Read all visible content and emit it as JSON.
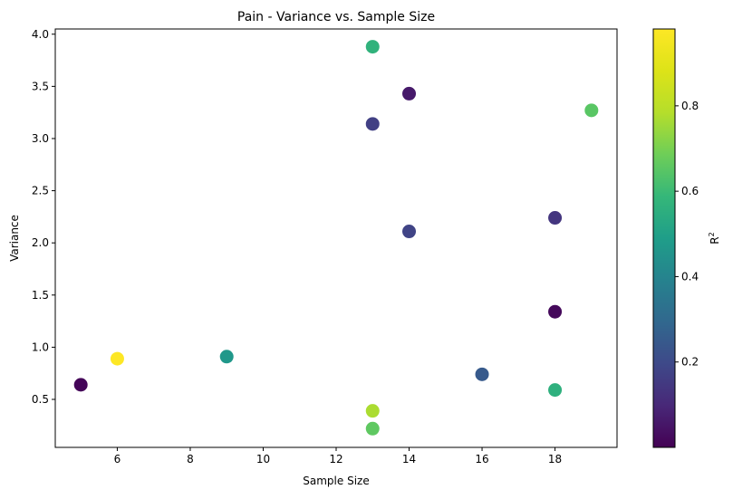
{
  "chart_data": {
    "type": "scatter",
    "title": "Pain - Variance vs. Sample Size",
    "xlabel": "Sample Size",
    "ylabel": "Variance",
    "xlim": [
      4.3,
      19.7
    ],
    "ylim": [
      0.04,
      4.05
    ],
    "xticks": [
      6,
      8,
      10,
      12,
      14,
      16,
      18
    ],
    "yticks": [
      0.5,
      1.0,
      1.5,
      2.0,
      2.5,
      3.0,
      3.5,
      4.0
    ],
    "grid": false,
    "colormap": "viridis",
    "colorbar": {
      "label_base": "R",
      "label_sup": "2",
      "range": [
        0.0,
        0.98
      ],
      "ticks": [
        0.2,
        0.4,
        0.6,
        0.8
      ]
    },
    "points": [
      {
        "x": 5,
        "y": 0.64,
        "r2": 0.01
      },
      {
        "x": 6,
        "y": 0.89,
        "r2": 0.98
      },
      {
        "x": 9,
        "y": 0.91,
        "r2": 0.47
      },
      {
        "x": 13,
        "y": 3.88,
        "r2": 0.57
      },
      {
        "x": 13,
        "y": 3.14,
        "r2": 0.17
      },
      {
        "x": 13,
        "y": 0.39,
        "r2": 0.77
      },
      {
        "x": 13,
        "y": 0.22,
        "r2": 0.66
      },
      {
        "x": 14,
        "y": 3.43,
        "r2": 0.06
      },
      {
        "x": 14,
        "y": 2.11,
        "r2": 0.18
      },
      {
        "x": 16,
        "y": 0.74,
        "r2": 0.25
      },
      {
        "x": 18,
        "y": 2.24,
        "r2": 0.14
      },
      {
        "x": 18,
        "y": 1.34,
        "r2": 0.02
      },
      {
        "x": 18,
        "y": 0.59,
        "r2": 0.56
      },
      {
        "x": 19,
        "y": 3.27,
        "r2": 0.65
      }
    ]
  }
}
